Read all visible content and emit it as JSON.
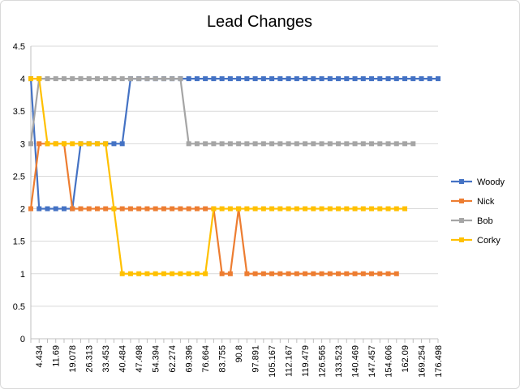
{
  "chart_data": {
    "type": "line",
    "title": "Lead Changes",
    "xlabel": "",
    "ylabel": "",
    "ylim": [
      0,
      4.5
    ],
    "yticks": [
      "0",
      "0.5",
      "1",
      "1.5",
      "2",
      "2.5",
      "3",
      "3.5",
      "4",
      "4.5"
    ],
    "grid": true,
    "legend_position": "right",
    "x_tick_labels": [
      "4.434",
      "11.69",
      "19.078",
      "26.313",
      "33.453",
      "40.484",
      "47.498",
      "54.394",
      "62.274",
      "69.396",
      "76.664",
      "83.755",
      "90.8",
      "97.891",
      "105.167",
      "112.167",
      "119.479",
      "126.565",
      "133.523",
      "140.469",
      "147.457",
      "154.606",
      "162.09",
      "169.254",
      "176.498"
    ],
    "num_points": 50,
    "series": [
      {
        "name": "Woody",
        "color": "#4472C4",
        "values": [
          4,
          2,
          2,
          2,
          2,
          2,
          3,
          3,
          3,
          3,
          3,
          3,
          4,
          4,
          4,
          4,
          4,
          4,
          4,
          4,
          4,
          4,
          4,
          4,
          4,
          4,
          4,
          4,
          4,
          4,
          4,
          4,
          4,
          4,
          4,
          4,
          4,
          4,
          4,
          4,
          4,
          4,
          4,
          4,
          4,
          4,
          4,
          4,
          4,
          4
        ]
      },
      {
        "name": "Nick",
        "color": "#ED7D31",
        "values": [
          2,
          3,
          3,
          3,
          3,
          2,
          2,
          2,
          2,
          2,
          2,
          2,
          2,
          2,
          2,
          2,
          2,
          2,
          2,
          2,
          2,
          2,
          2,
          1,
          1,
          2,
          1,
          1,
          1,
          1,
          1,
          1,
          1,
          1,
          1,
          1,
          1,
          1,
          1,
          1,
          1,
          1,
          1,
          1,
          1
        ]
      },
      {
        "name": "Bob",
        "color": "#A5A5A5",
        "values": [
          3,
          4,
          4,
          4,
          4,
          4,
          4,
          4,
          4,
          4,
          4,
          4,
          4,
          4,
          4,
          4,
          4,
          4,
          4,
          3,
          3,
          3,
          3,
          3,
          3,
          3,
          3,
          3,
          3,
          3,
          3,
          3,
          3,
          3,
          3,
          3,
          3,
          3,
          3,
          3,
          3,
          3,
          3,
          3,
          3,
          3,
          3
        ]
      },
      {
        "name": "Corky",
        "color": "#FFC000",
        "values": [
          4,
          4,
          3,
          3,
          3,
          3,
          3,
          3,
          3,
          3,
          2,
          1,
          1,
          1,
          1,
          1,
          1,
          1,
          1,
          1,
          1,
          1,
          2,
          2,
          2,
          2,
          2,
          2,
          2,
          2,
          2,
          2,
          2,
          2,
          2,
          2,
          2,
          2,
          2,
          2,
          2,
          2,
          2,
          2,
          2,
          2
        ]
      }
    ]
  }
}
